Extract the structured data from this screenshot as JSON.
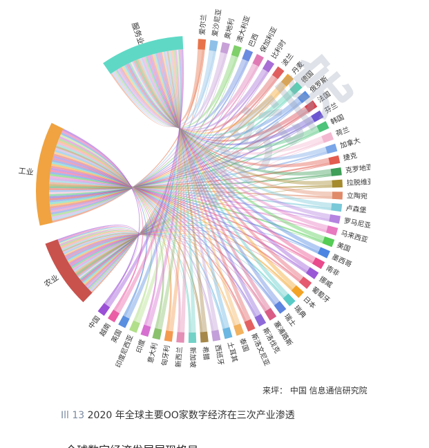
{
  "source_line": "来坪：  中国  信息通信研究院",
  "caption": {
    "label": "Ill 13",
    "text": "2020 年全球主要OO家数字经济在三次产业渗透"
  },
  "cutoff_text": "一 全球数字经济发展展现格局",
  "watermark": "研究院",
  "chart_data": {
    "type": "chord",
    "source_nodes": [
      {
        "label": "服务业",
        "color": "#5fd9c6"
      },
      {
        "label": "工业",
        "color": "#f0a340"
      },
      {
        "label": "农业",
        "color": "#c9524d"
      }
    ],
    "country_nodes": [
      {
        "label": "爱尔兰",
        "color": "#e8734a"
      },
      {
        "label": "爱沙尼亚",
        "color": "#8fc1e8"
      },
      {
        "label": "奥地利",
        "color": "#c7a0d8"
      },
      {
        "label": "澳大利亚",
        "color": "#7fcf6a"
      },
      {
        "label": "巴西",
        "color": "#6a8be0"
      },
      {
        "label": "保加利亚",
        "color": "#e07ab5"
      },
      {
        "label": "比利时",
        "color": "#a86fd6"
      },
      {
        "label": "波兰",
        "color": "#e05e5e"
      },
      {
        "label": "丹麦",
        "color": "#f3a52e"
      },
      {
        "label": "德国",
        "color": "#56d1b2"
      },
      {
        "label": "俄罗斯",
        "color": "#5b8de0"
      },
      {
        "label": "法国",
        "color": "#d9434f"
      },
      {
        "label": "芬兰",
        "color": "#6b55d1"
      },
      {
        "label": "韩国",
        "color": "#4dc47a"
      },
      {
        "label": "荷兰",
        "color": "#f2b8d0"
      },
      {
        "label": "加拿大",
        "color": "#7aa6e8"
      },
      {
        "label": "捷克",
        "color": "#e25c4f"
      },
      {
        "label": "克罗地亚",
        "color": "#3f9e57"
      },
      {
        "label": "拉脱维亚",
        "color": "#a58a2e"
      },
      {
        "label": "立陶宛",
        "color": "#e08a6a"
      },
      {
        "label": "卢森堡",
        "color": "#79c9d9"
      },
      {
        "label": "罗马尼亚",
        "color": "#b583e0"
      },
      {
        "label": "马来西亚",
        "color": "#e87ac0"
      },
      {
        "label": "美国",
        "color": "#55cc55"
      },
      {
        "label": "墨西哥",
        "color": "#4c86e2"
      },
      {
        "label": "南非",
        "color": "#e94a8b"
      },
      {
        "label": "挪威",
        "color": "#9b58d6"
      },
      {
        "label": "葡萄牙",
        "color": "#e55a6e"
      },
      {
        "label": "日本",
        "color": "#f3a326"
      },
      {
        "label": "瑞典",
        "color": "#58cbc7"
      },
      {
        "label": "瑞士",
        "color": "#5d84de"
      },
      {
        "label": "塞浦路斯",
        "color": "#d95c86"
      },
      {
        "label": "斯洛伐克",
        "color": "#8e6ad9"
      },
      {
        "label": "斯洛文尼亚",
        "color": "#e36161"
      },
      {
        "label": "泰国",
        "color": "#f2b25e"
      },
      {
        "label": "土耳其",
        "color": "#6bb6e2"
      },
      {
        "label": "西班牙",
        "color": "#c3a0d9"
      },
      {
        "label": "希腊",
        "color": "#a6884a"
      },
      {
        "label": "新加坡",
        "color": "#72d2c7"
      },
      {
        "label": "新西兰",
        "color": "#e48fb6"
      },
      {
        "label": "匈牙利",
        "color": "#f39a4f"
      },
      {
        "label": "意大利",
        "color": "#8ac16c"
      },
      {
        "label": "印度",
        "color": "#d66fd0"
      },
      {
        "label": "印度尼西亚",
        "color": "#b2df8a"
      },
      {
        "label": "英国",
        "color": "#5a8fe0"
      },
      {
        "label": "越南",
        "color": "#ea5fa6"
      },
      {
        "label": "中国",
        "color": "#9b4fd6"
      }
    ],
    "xlabel": "",
    "ylabel": ""
  }
}
